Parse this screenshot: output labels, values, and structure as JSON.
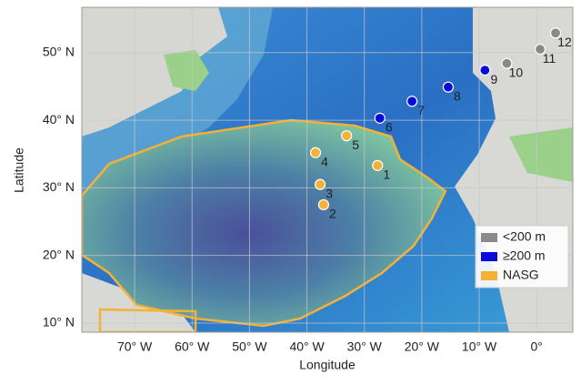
{
  "chart_data": {
    "type": "scatter",
    "x_label": "Longitude",
    "y_label": "Latitude",
    "xlim": [
      -79.2,
      6.3
    ],
    "ylim": [
      8.65,
      56.7
    ],
    "xticks": [
      {
        "value": -70,
        "label": "70° W"
      },
      {
        "value": -60,
        "label": "60° W"
      },
      {
        "value": -50,
        "label": "50° W"
      },
      {
        "value": -40,
        "label": "40° W"
      },
      {
        "value": -30,
        "label": "30° W"
      },
      {
        "value": -20,
        "label": "20° W"
      },
      {
        "value": -10,
        "label": "10° W"
      },
      {
        "value": 0,
        "label": "0°"
      }
    ],
    "yticks": [
      {
        "value": 10,
        "label": "10° N"
      },
      {
        "value": 20,
        "label": "20° N"
      },
      {
        "value": 30,
        "label": "30° N"
      },
      {
        "value": 40,
        "label": "40° N"
      },
      {
        "value": 50,
        "label": "50° N"
      }
    ],
    "grid": true,
    "legend": "lower right",
    "series": [
      {
        "name": "<200 m",
        "color": "#8a8a8a",
        "label_color": "#8a8a8a",
        "x": [
          -5.2,
          0.6,
          3.3
        ],
        "values": [
          48.4,
          50.5,
          52.9
        ],
        "labels": [
          "10",
          "11",
          "12"
        ]
      },
      {
        "name": "≥200 m",
        "color": "#0a0adc",
        "label_color": "#ffffff",
        "x": [
          -27.3,
          -21.7,
          -15.4,
          -9.0
        ],
        "values": [
          40.3,
          42.8,
          44.9,
          47.4
        ],
        "labels": [
          "6",
          "7",
          "8",
          "9"
        ]
      },
      {
        "name": "NASG",
        "color": "#f4b136",
        "label_color": "#ffffff",
        "x": [
          -27.7,
          -37.1,
          -37.7,
          -38.5,
          -33.1
        ],
        "values": [
          33.3,
          27.5,
          30.5,
          35.2,
          37.7
        ],
        "labels": [
          "1",
          "2",
          "3",
          "4",
          "5"
        ]
      }
    ]
  }
}
